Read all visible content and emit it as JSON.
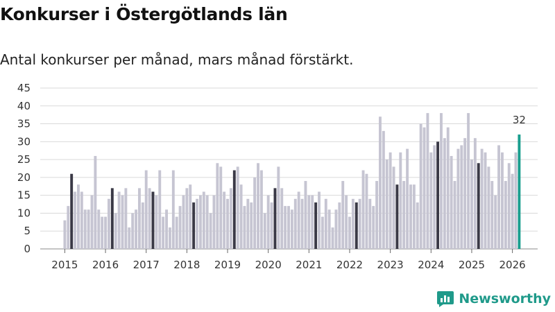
{
  "title": "Konkurser i Östergötlands län",
  "subtitle": "Antal konkurser per månad, mars månad förstärkt.",
  "brand": "Newsworthy",
  "colors": {
    "normal": "#c6c5d2",
    "march": "#3a3946",
    "latest": "#1a9e8e",
    "grid": "#d9d9d9",
    "brand": "#1f9a8a"
  },
  "chart_data": {
    "type": "bar",
    "title": "Konkurser i Östergötlands län",
    "subtitle": "Antal konkurser per månad, mars månad förstärkt.",
    "start": "2015-01",
    "ylim": [
      0,
      45
    ],
    "yticks": [
      0,
      5,
      10,
      15,
      20,
      25,
      30,
      35,
      40,
      45
    ],
    "xticks": [
      "2015",
      "2016",
      "2017",
      "2018",
      "2019",
      "2020",
      "2021",
      "2022",
      "2023",
      "2024",
      "2025",
      "2026"
    ],
    "highlight_month": "March",
    "last_value_label": "32",
    "values": [
      8,
      12,
      21,
      16,
      18,
      16,
      11,
      11,
      15,
      26,
      11,
      9,
      9,
      14,
      17,
      10,
      16,
      15,
      17,
      6,
      10,
      11,
      17,
      13,
      22,
      17,
      16,
      15,
      22,
      9,
      11,
      6,
      22,
      9,
      12,
      15,
      17,
      18,
      13,
      14,
      15,
      16,
      15,
      10,
      15,
      24,
      23,
      16,
      14,
      17,
      22,
      23,
      18,
      12,
      14,
      13,
      20,
      24,
      22,
      10,
      15,
      13,
      17,
      23,
      17,
      12,
      12,
      11,
      14,
      16,
      14,
      19,
      15,
      15,
      13,
      16,
      9,
      14,
      11,
      6,
      11,
      13,
      19,
      15,
      9,
      14,
      13,
      14,
      22,
      21,
      14,
      12,
      19,
      37,
      33,
      25,
      27,
      23,
      18,
      27,
      19,
      28,
      18,
      18,
      13,
      35,
      34,
      38,
      27,
      29,
      30,
      38,
      31,
      34,
      26,
      19,
      28,
      29,
      31,
      38,
      25,
      31,
      24,
      28,
      27,
      23,
      19,
      15,
      29,
      27,
      19,
      24,
      21,
      27,
      32
    ]
  }
}
